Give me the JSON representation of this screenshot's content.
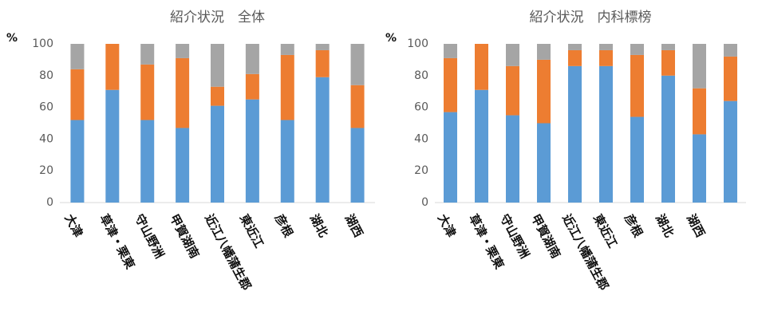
{
  "chart_data": [
    {
      "type": "stacked_bar",
      "title": "紹介状況　全体",
      "ylabel": "%",
      "categories": [
        "大津",
        "草津・栗東",
        "守山野洲",
        "甲賀湖南",
        "近江八幡蒲生郡",
        "東近江",
        "彦根",
        "湖北",
        "湖西"
      ],
      "series": [
        {
          "color": "#5b9bd5",
          "values": [
            52,
            71,
            52,
            47,
            61,
            65,
            52,
            79,
            47
          ]
        },
        {
          "color": "#ed7d31",
          "values": [
            32,
            29,
            35,
            44,
            12,
            16,
            41,
            17,
            27
          ]
        },
        {
          "color": "#a5a5a5",
          "values": [
            16,
            0,
            13,
            9,
            27,
            19,
            7,
            4,
            26
          ]
        }
      ],
      "ylim": [
        0,
        100
      ],
      "yticks": [
        0,
        20,
        40,
        60,
        80,
        100
      ]
    },
    {
      "type": "stacked_bar",
      "title": "紹介状況　内科標榜",
      "ylabel": "%",
      "categories": [
        "大津",
        "草津・栗東",
        "守山野洲",
        "甲賀湖南",
        "近江八幡蒲生郡",
        "東近江",
        "彦根",
        "湖北",
        "湖西",
        null
      ],
      "series": [
        {
          "color": "#5b9bd5",
          "values": [
            57,
            71,
            55,
            50,
            86,
            86,
            54,
            80,
            43,
            64
          ]
        },
        {
          "color": "#ed7d31",
          "values": [
            34,
            29,
            31,
            40,
            10,
            10,
            39,
            16,
            29,
            28
          ]
        },
        {
          "color": "#a5a5a5",
          "values": [
            9,
            0,
            14,
            10,
            4,
            4,
            7,
            4,
            28,
            8
          ]
        }
      ],
      "ylim": [
        0,
        100
      ],
      "yticks": [
        0,
        20,
        40,
        60,
        80,
        100
      ]
    }
  ]
}
